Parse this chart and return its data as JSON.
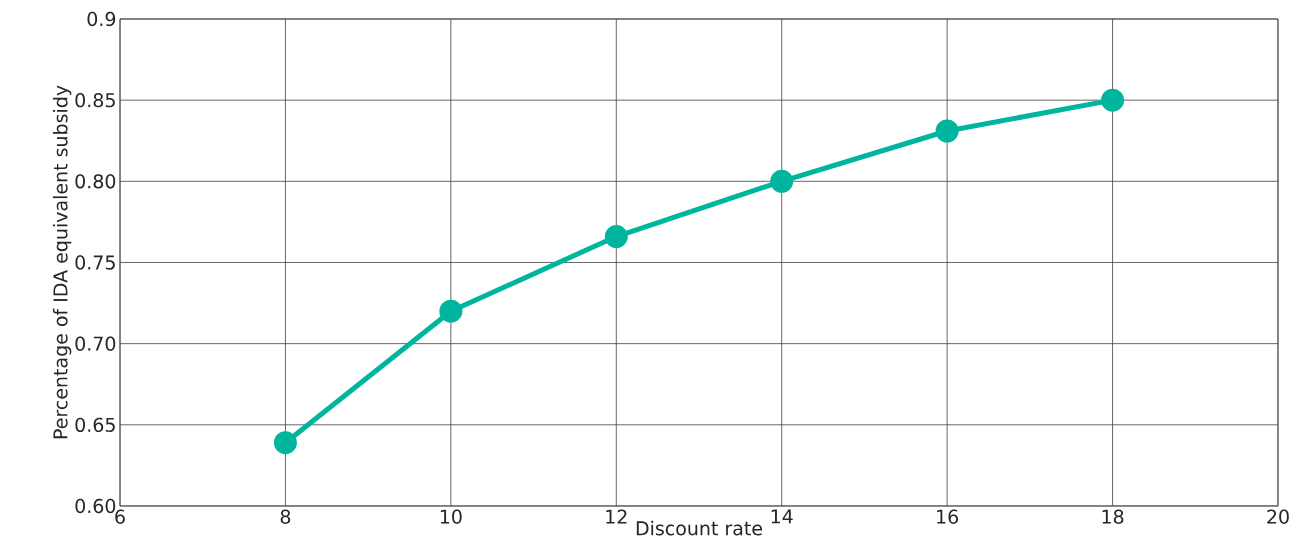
{
  "chart_data": {
    "type": "line",
    "xlabel": "Discount rate",
    "ylabel": "Percentage of IDA equivalent subsidy",
    "x": [
      8,
      10,
      12,
      14,
      16,
      18
    ],
    "series": [
      {
        "color": "#00b59d",
        "values": [
          0.639,
          0.72,
          0.766,
          0.8,
          0.831,
          0.85
        ]
      }
    ],
    "xlim": [
      6,
      20
    ],
    "xticks": [
      6,
      8,
      10,
      12,
      14,
      16,
      18,
      20
    ],
    "ylim": [
      0.6,
      0.9
    ],
    "yticks": [
      {
        "value": 0.6,
        "label": "0.60"
      },
      0.65,
      {
        "value": 0.7,
        "label": "0.70"
      },
      0.75,
      {
        "value": 0.8,
        "label": "0.80"
      },
      0.85,
      0.9
    ],
    "grid": true,
    "marker": "circle",
    "line_style": "solid"
  }
}
